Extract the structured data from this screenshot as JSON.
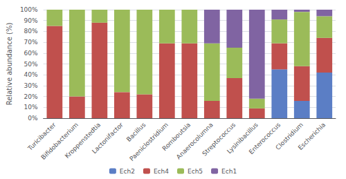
{
  "chart_data": {
    "type": "bar",
    "stacked": true,
    "categories": [
      "Turicibacter",
      "Bifidobacterium",
      "Kroppenstedtia",
      "Lactonifactor",
      "Bacillus",
      "Paeniclostridium",
      "Romboutsia",
      "Anaerocolumna",
      "Streptococcus",
      "Lysinibacillus",
      "Enterococcus",
      "Clostridium",
      "Escherichia"
    ],
    "series": [
      {
        "name": "Ech2",
        "color": "#5b7ec5",
        "values": [
          0,
          0,
          0,
          0,
          0,
          0,
          0,
          0,
          0,
          0,
          45,
          16,
          42
        ]
      },
      {
        "name": "Ech4",
        "color": "#c0504d",
        "values": [
          85,
          20,
          88,
          24,
          22,
          69,
          69,
          16,
          37,
          9,
          24,
          32,
          32
        ]
      },
      {
        "name": "Ech5",
        "color": "#9bbb59",
        "values": [
          15,
          80,
          12,
          76,
          78,
          31,
          31,
          53,
          28,
          9,
          22,
          50,
          20
        ]
      },
      {
        "name": "Ech1",
        "color": "#8064a2",
        "values": [
          0,
          0,
          0,
          0,
          0,
          0,
          0,
          31,
          35,
          82,
          9,
          2,
          6
        ]
      }
    ],
    "ylabel": "Relative abundance (%)",
    "ylim": [
      0,
      100
    ],
    "yticks": [
      {
        "value": 0,
        "label": "0%"
      },
      {
        "value": 10,
        "label": "10%"
      },
      {
        "value": 20,
        "label": "20%"
      },
      {
        "value": 30,
        "label": "30%"
      },
      {
        "value": 40,
        "label": "40%"
      },
      {
        "value": 50,
        "label": "50%"
      },
      {
        "value": 60,
        "label": "60%"
      },
      {
        "value": 70,
        "label": "70%"
      },
      {
        "value": 80,
        "label": "80%"
      },
      {
        "value": 90,
        "label": "90%"
      },
      {
        "value": 100,
        "label": "100%"
      }
    ],
    "grid": true,
    "legend": "bottom"
  }
}
